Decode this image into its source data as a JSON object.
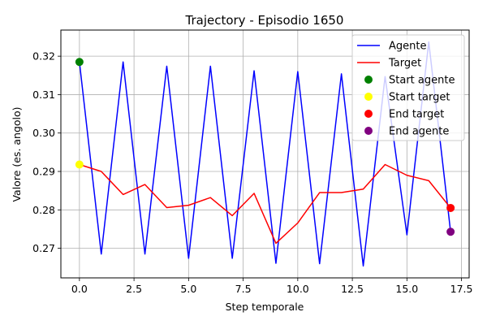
{
  "chart_data": {
    "type": "line",
    "title": "Trajectory - Episodio 1650",
    "xlabel": "Step temporale",
    "ylabel": "Valore (es. angolo)",
    "xlim": [
      -0.85,
      17.85
    ],
    "ylim": [
      0.2623,
      0.3268
    ],
    "xticks": [
      0.0,
      2.5,
      5.0,
      7.5,
      10.0,
      12.5,
      15.0,
      17.5
    ],
    "xtick_labels": [
      "0.0",
      "2.5",
      "5.0",
      "7.5",
      "10.0",
      "12.5",
      "15.0",
      "17.5"
    ],
    "yticks": [
      0.27,
      0.28,
      0.29,
      0.3,
      0.31,
      0.32
    ],
    "ytick_labels": [
      "0.27",
      "0.28",
      "0.29",
      "0.30",
      "0.31",
      "0.32"
    ],
    "grid": true,
    "legend_position": "top-right",
    "x": [
      0,
      1,
      2,
      3,
      4,
      5,
      6,
      7,
      8,
      9,
      10,
      11,
      12,
      13,
      14,
      15,
      16,
      17
    ],
    "series": [
      {
        "name": "Agente",
        "color": "#0000ff",
        "values": [
          0.3185,
          0.2685,
          0.3185,
          0.2685,
          0.3174,
          0.2674,
          0.3174,
          0.2674,
          0.3162,
          0.2661,
          0.316,
          0.266,
          0.3154,
          0.2654,
          0.3147,
          0.2735,
          0.3237,
          0.2743
        ]
      },
      {
        "name": "Target",
        "color": "#ff0000",
        "values": [
          0.2918,
          0.29,
          0.284,
          0.2866,
          0.2806,
          0.2812,
          0.2832,
          0.2785,
          0.2843,
          0.2713,
          0.2766,
          0.2845,
          0.2845,
          0.2854,
          0.2918,
          0.289,
          0.2876,
          0.2805
        ]
      }
    ],
    "markers": [
      {
        "name": "Start agente",
        "x": 0,
        "y": 0.3185,
        "color": "#008000"
      },
      {
        "name": "Start target",
        "x": 0,
        "y": 0.2918,
        "color": "#ffff00"
      },
      {
        "name": "End target",
        "x": 17,
        "y": 0.2805,
        "color": "#ff0000"
      },
      {
        "name": "End agente",
        "x": 17,
        "y": 0.2743,
        "color": "#800080"
      }
    ]
  }
}
